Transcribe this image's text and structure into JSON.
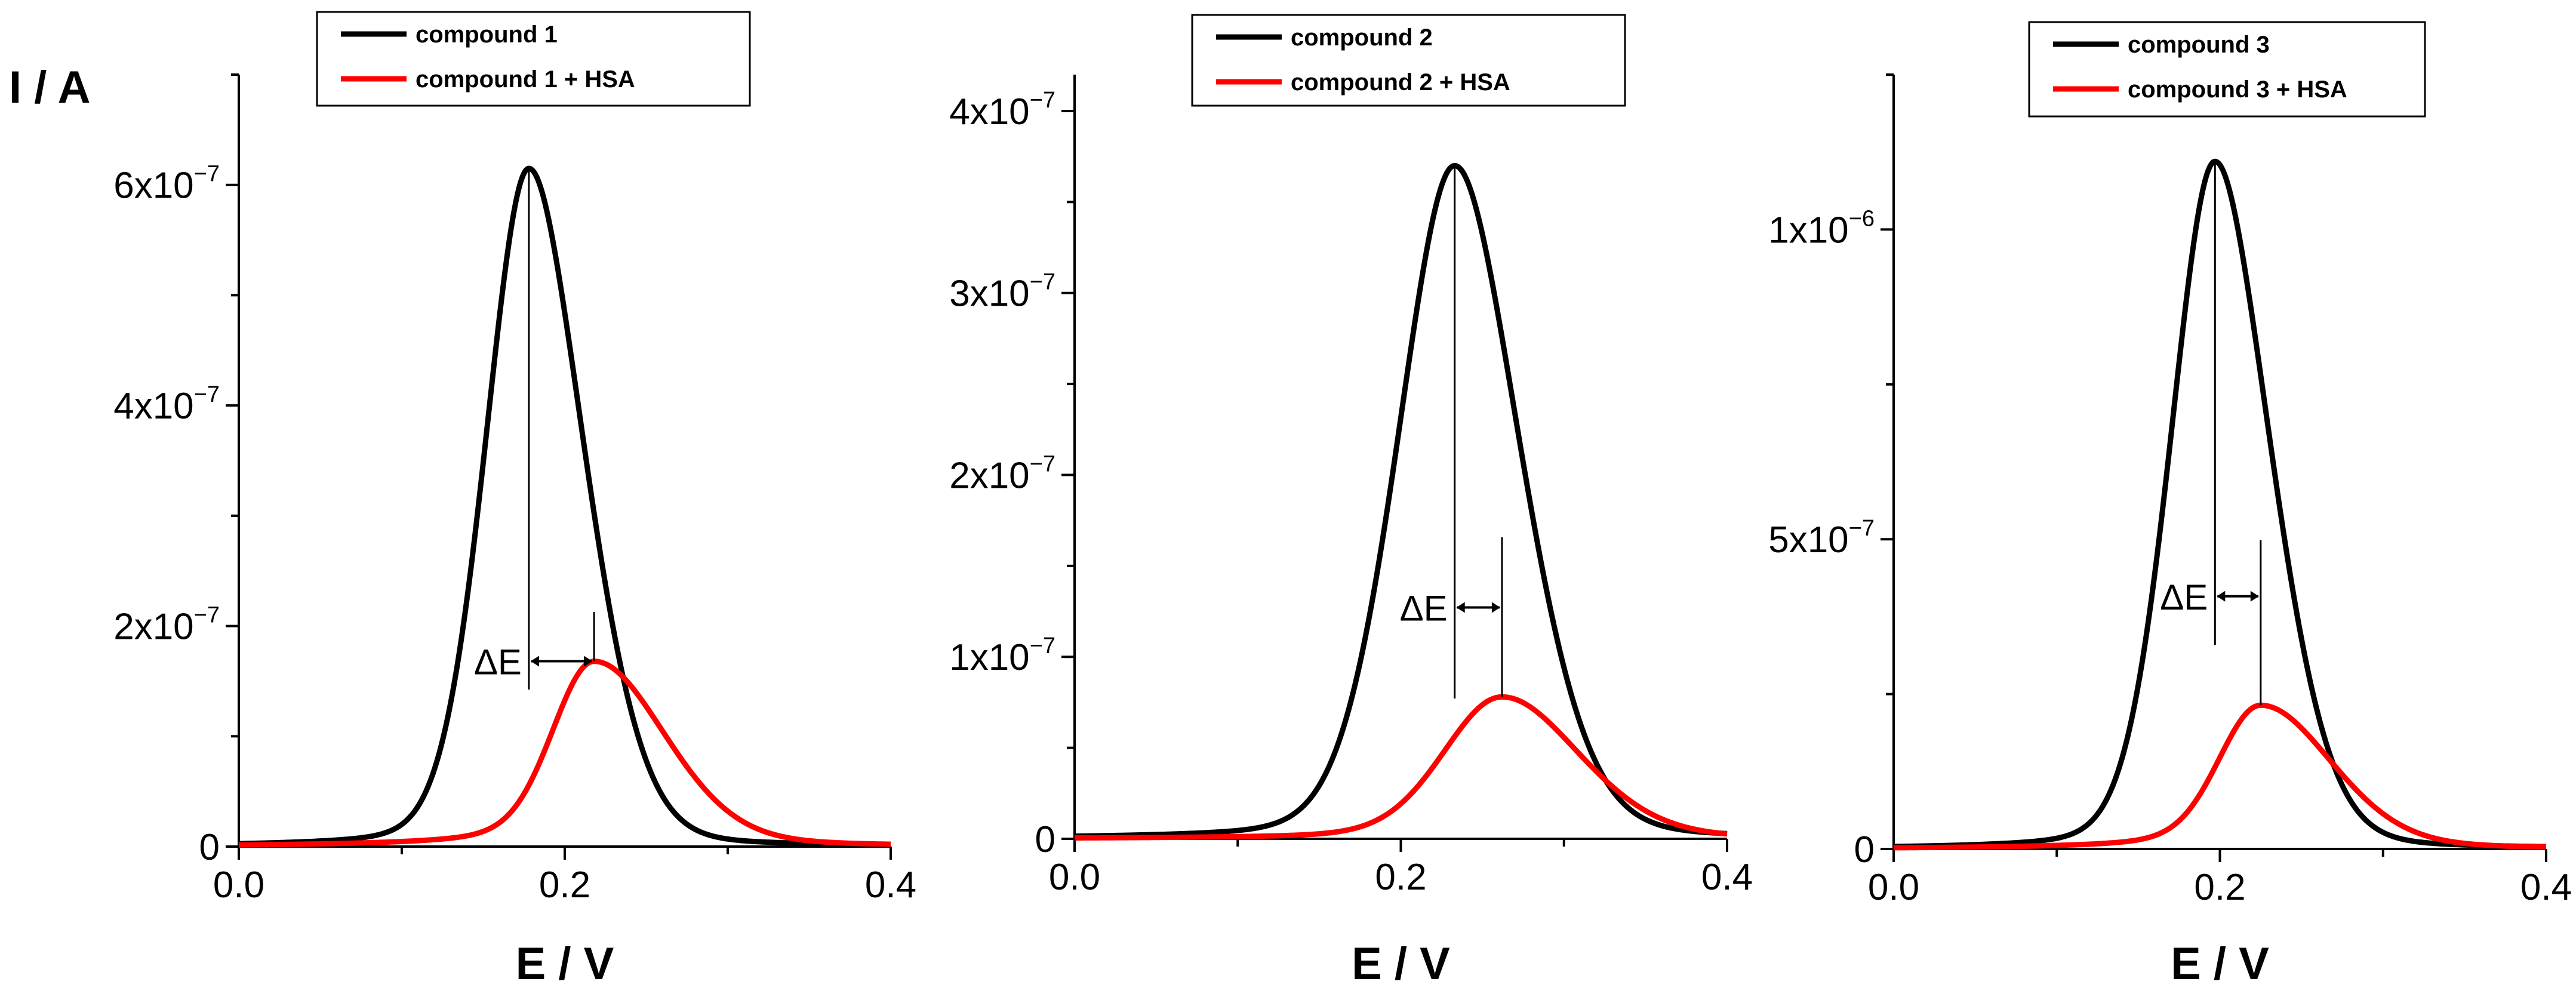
{
  "chart_data": [
    {
      "type": "line",
      "title": "",
      "xlabel": "E / V",
      "ylabel": "I / A",
      "xlim": [
        0.0,
        0.4
      ],
      "ylim": [
        0,
        7e-07
      ],
      "x_ticks": [
        {
          "value": 0.0,
          "label": "0.0"
        },
        {
          "value": 0.2,
          "label": "0.2"
        },
        {
          "value": 0.4,
          "label": "0.4"
        }
      ],
      "y_ticks": [
        {
          "value": 0,
          "mantissa": "0",
          "exponent": ""
        },
        {
          "value": 2e-07,
          "mantissa": "2x10",
          "exponent": "−7"
        },
        {
          "value": 4e-07,
          "mantissa": "4x10",
          "exponent": "−7"
        },
        {
          "value": 6e-07,
          "mantissa": "6x10",
          "exponent": "−7"
        }
      ],
      "series": [
        {
          "name": "compound 1",
          "color": "#000000",
          "peak_x": 0.178,
          "peak_y": 6.15e-07,
          "width_left": 0.038,
          "width_right": 0.05,
          "tail": 0.028
        },
        {
          "name": "compound 1 + HSA",
          "color": "#ff0000",
          "peak_x": 0.218,
          "peak_y": 1.68e-07,
          "width_left": 0.035,
          "width_right": 0.062,
          "tail": 0.05
        }
      ],
      "annotation": {
        "label": "ΔE",
        "from_x": 0.178,
        "to_x": 0.218
      }
    },
    {
      "type": "line",
      "title": "",
      "xlabel": "E / V",
      "ylabel": "",
      "xlim": [
        0.0,
        0.4
      ],
      "ylim": [
        0,
        4.2e-07
      ],
      "x_ticks": [
        {
          "value": 0.0,
          "label": "0.0"
        },
        {
          "value": 0.2,
          "label": "0.2"
        },
        {
          "value": 0.4,
          "label": "0.4"
        }
      ],
      "y_ticks": [
        {
          "value": 0,
          "mantissa": "0",
          "exponent": ""
        },
        {
          "value": 1e-07,
          "mantissa": "1x10",
          "exponent": "−7"
        },
        {
          "value": 2e-07,
          "mantissa": "2x10",
          "exponent": "−7"
        },
        {
          "value": 3e-07,
          "mantissa": "3x10",
          "exponent": "−7"
        },
        {
          "value": 4e-07,
          "mantissa": "4x10",
          "exponent": "−7"
        }
      ],
      "series": [
        {
          "name": "compound 2",
          "color": "#000000",
          "peak_x": 0.233,
          "peak_y": 3.7e-07,
          "width_left": 0.05,
          "width_right": 0.058,
          "tail": 0.035
        },
        {
          "name": "compound 2 + HSA",
          "color": "#ff0000",
          "peak_x": 0.262,
          "peak_y": 7.8e-08,
          "width_left": 0.05,
          "width_right": 0.068,
          "tail": 0.05
        }
      ],
      "annotation": {
        "label": "ΔE",
        "from_x": 0.233,
        "to_x": 0.262
      }
    },
    {
      "type": "line",
      "title": "",
      "xlabel": "E / V",
      "ylabel": "",
      "xlim": [
        0.0,
        0.4
      ],
      "ylim": [
        0,
        1.25e-06
      ],
      "x_ticks": [
        {
          "value": 0.0,
          "label": "0.0"
        },
        {
          "value": 0.2,
          "label": "0.2"
        },
        {
          "value": 0.4,
          "label": "0.4"
        }
      ],
      "y_ticks": [
        {
          "value": 0,
          "mantissa": "0",
          "exponent": ""
        },
        {
          "value": 5e-07,
          "mantissa": "5x10",
          "exponent": "−7"
        },
        {
          "value": 1e-06,
          "mantissa": "1x10",
          "exponent": "−6"
        }
      ],
      "series": [
        {
          "name": "compound 3",
          "color": "#000000",
          "peak_x": 0.197,
          "peak_y": 1.11e-06,
          "width_left": 0.039,
          "width_right": 0.05,
          "tail": 0.028
        },
        {
          "name": "compound 3 + HSA",
          "color": "#ff0000",
          "peak_x": 0.225,
          "peak_y": 2.32e-07,
          "width_left": 0.035,
          "width_right": 0.062,
          "tail": 0.05
        }
      ],
      "annotation": {
        "label": "ΔE",
        "from_x": 0.197,
        "to_x": 0.225
      }
    }
  ]
}
